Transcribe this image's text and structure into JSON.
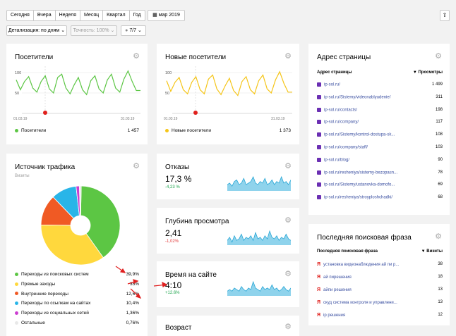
{
  "toolbar": {
    "periods": [
      "Сегодня",
      "Вчера",
      "Неделя",
      "Месяц",
      "Квартал",
      "Год"
    ],
    "date_label": "мар 2019",
    "detail_label": "Детализация: по дням",
    "accuracy_label": "Точность: 100%",
    "segments_label": "7/7"
  },
  "visitors": {
    "title": "Посетители",
    "y_ticks": [
      "100",
      "50"
    ],
    "x_start": "01.03.19",
    "x_end": "31.03.19",
    "legend": "Посетители",
    "total": "1 457",
    "series": [
      82,
      58,
      78,
      90,
      62,
      52,
      78,
      92,
      60,
      50,
      88,
      96,
      62,
      48,
      70,
      88,
      58,
      46,
      80,
      92,
      60,
      50,
      82,
      96,
      62,
      52,
      84,
      104,
      78,
      56,
      56
    ]
  },
  "new_visitors": {
    "title": "Новые посетители",
    "y_ticks": [
      "100",
      "50"
    ],
    "x_start": "01.03.19",
    "x_end": "31.03.19",
    "legend": "Новые посетители",
    "total": "1 373",
    "series": [
      80,
      54,
      76,
      88,
      58,
      48,
      76,
      90,
      58,
      48,
      84,
      94,
      60,
      46,
      68,
      86,
      56,
      44,
      78,
      90,
      58,
      48,
      80,
      94,
      60,
      50,
      82,
      102,
      74,
      52,
      52
    ]
  },
  "page_address": {
    "title": "Адрес страницы",
    "col_name": "Адрес страницы",
    "col_value": "▼ Просмотры",
    "rows": [
      {
        "url": "ip-sol.ru/",
        "value": "1 499"
      },
      {
        "url": "ip-sol.ru/Sistemy/videonablyudenie/",
        "value": "311"
      },
      {
        "url": "ip-sol.ru/contacts/",
        "value": "198"
      },
      {
        "url": "ip-sol.ru/company/",
        "value": "117"
      },
      {
        "url": "ip-sol.ru/Sistemy/kontrol-dostupa-sk...",
        "value": "108"
      },
      {
        "url": "ip-sol.ru/company/staff/",
        "value": "103"
      },
      {
        "url": "ip-sol.ru/blog/",
        "value": "90"
      },
      {
        "url": "ip-sol.ru/resheniya/sistemy-bezopasn...",
        "value": "78"
      },
      {
        "url": "ip-sol.ru/Sistemy/ustanovka-domofo...",
        "value": "69"
      },
      {
        "url": "ip-sol.ru/resheniya/stroyploshchadki/",
        "value": "68"
      }
    ]
  },
  "traffic": {
    "title": "Источник трафика",
    "subtitle": "Визиты",
    "items": [
      {
        "label": "Переходы из поисковых систем",
        "value": "39,9%",
        "pct": 39.9,
        "color": "#5cc644"
      },
      {
        "label": "Прямые заходы",
        "value": "35%",
        "pct": 35,
        "color": "#ffd83d"
      },
      {
        "label": "Внутренние переходы",
        "value": "12,6%",
        "pct": 12.6,
        "color": "#f05a24"
      },
      {
        "label": "Переходы по ссылкам на сайтах",
        "value": "10,4%",
        "pct": 10.4,
        "color": "#29b5e8"
      },
      {
        "label": "Переходы из социальных сетей",
        "value": "1,36%",
        "pct": 1.36,
        "color": "#cc3fd1"
      },
      {
        "label": "Остальные",
        "value": "0,76%",
        "pct": 0.76,
        "color": "#e8e8e8"
      }
    ]
  },
  "bounces": {
    "title": "Отказы",
    "value": "17,3 %",
    "delta": "-4,23 %",
    "delta_color": "#1aa34a",
    "spark": [
      4,
      5,
      3,
      6,
      7,
      4,
      5,
      8,
      4,
      5,
      6,
      9,
      5,
      4,
      6,
      5,
      8,
      4,
      5,
      7,
      4,
      6,
      5,
      9,
      5,
      6,
      4,
      7
    ]
  },
  "depth": {
    "title": "Глубина просмотра",
    "value": "2,41",
    "delta": "-1,02%",
    "delta_color": "#e23b3b",
    "spark": [
      3,
      5,
      2,
      6,
      3,
      4,
      7,
      3,
      5,
      4,
      6,
      3,
      8,
      4,
      5,
      3,
      6,
      4,
      9,
      5,
      4,
      6,
      3,
      5,
      4,
      7,
      4,
      3
    ]
  },
  "time_on_site": {
    "title": "Время на сайте",
    "value": "4:10",
    "delta": "+12.6%",
    "delta_color": "#1aa34a",
    "spark": [
      3,
      4,
      3,
      5,
      4,
      3,
      6,
      4,
      3,
      5,
      4,
      9,
      5,
      4,
      3,
      6,
      4,
      5,
      4,
      7,
      4,
      5,
      3,
      4,
      6,
      4,
      3,
      5
    ]
  },
  "age": {
    "title": "Возраст"
  },
  "search_phrase": {
    "title": "Последняя поисковая фраза",
    "col_name": "Последняя поисковая фраза",
    "col_value": "▼ Визиты",
    "rows": [
      {
        "phrase": "установка видеонаблюдения ай пи р...",
        "value": "38"
      },
      {
        "phrase": "ай пирешения",
        "value": "18"
      },
      {
        "phrase": "айпи решения",
        "value": "13"
      },
      {
        "phrase": "скуд система контроля и управлени...",
        "value": "13"
      },
      {
        "phrase": "ip решения",
        "value": "12"
      }
    ]
  },
  "colors": {
    "visitors_line": "#5cc644",
    "new_visitors_line": "#f5c518",
    "spark_fill": "#8fd3ec",
    "spark_line": "#29a7d6",
    "annotation_arrow": "#e02020"
  }
}
